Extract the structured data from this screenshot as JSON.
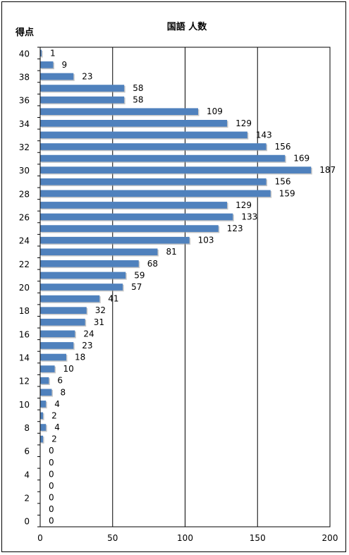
{
  "chart_data": {
    "type": "bar",
    "orientation": "horizontal",
    "title": "国語 人数",
    "ylabel": "得点",
    "xlabel": "",
    "xlim": [
      0,
      200
    ],
    "x_ticks": [
      0,
      50,
      100,
      150,
      200
    ],
    "y_ticks": [
      40,
      38,
      36,
      34,
      32,
      30,
      28,
      26,
      24,
      22,
      20,
      18,
      16,
      14,
      12,
      10,
      8,
      6,
      4,
      2,
      0
    ],
    "grid": "vertical",
    "legend": "none",
    "bar_color": "#4f81bd",
    "categories": [
      40,
      39,
      38,
      37,
      36,
      35,
      34,
      33,
      32,
      31,
      30,
      29,
      28,
      27,
      26,
      25,
      24,
      23,
      22,
      21,
      20,
      19,
      18,
      17,
      16,
      15,
      14,
      13,
      12,
      11,
      10,
      9,
      8,
      7,
      6,
      5,
      4,
      3,
      2,
      1,
      0
    ],
    "values": [
      1,
      9,
      23,
      58,
      58,
      109,
      129,
      143,
      156,
      169,
      187,
      156,
      159,
      129,
      133,
      123,
      103,
      81,
      68,
      59,
      57,
      41,
      32,
      31,
      24,
      23,
      18,
      10,
      6,
      8,
      4,
      2,
      4,
      2,
      0,
      0,
      0,
      0,
      0,
      0,
      0
    ]
  }
}
